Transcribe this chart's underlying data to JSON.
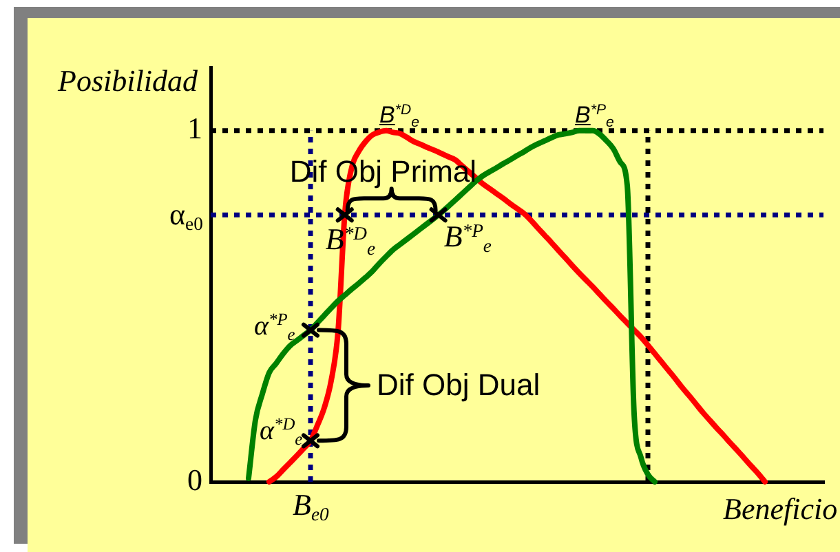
{
  "chart_data": {
    "type": "line",
    "xlabel": "Beneficio",
    "ylabel": "Posibilidad",
    "categories": [
      null,
      null,
      null,
      null,
      null,
      null,
      null,
      null,
      null,
      null,
      null,
      null,
      null,
      null,
      null,
      null,
      null,
      null,
      null,
      null,
      null,
      null,
      null,
      null,
      null,
      null,
      null,
      null,
      null,
      null,
      null,
      null,
      null,
      null,
      null,
      null,
      null,
      null,
      null,
      null,
      null,
      null,
      null,
      null,
      null,
      null,
      null,
      null,
      null,
      null,
      null,
      null,
      null,
      null,
      null,
      null,
      null,
      null,
      null,
      null,
      null,
      null,
      null,
      null,
      null,
      null,
      null,
      null,
      null,
      null,
      null,
      null,
      null,
      null,
      null,
      null,
      null,
      null,
      null,
      null,
      null,
      null,
      null,
      null,
      null,
      null,
      null,
      null,
      null
    ],
    "ylim": [
      0,
      1.18
    ],
    "yticks": [
      0,
      {
        "value": 0.76,
        "label": "α$_{e0}$"
      },
      1
    ],
    "marker": "none",
    "series": [
      {
        "color": "#008000",
        "values": [
          null,
          null,
          null,
          null,
          null,
          0.01,
          0.176,
          0.25,
          0.311,
          0.337,
          0.364,
          0.387,
          0.402,
          0.417,
          0.432,
          0.453,
          0.474,
          0.495,
          0.515,
          0.532,
          0.549,
          0.565,
          0.582,
          0.6,
          0.622,
          0.642,
          0.661,
          0.676,
          0.691,
          0.706,
          0.721,
          0.736,
          0.751,
          0.767,
          0.784,
          0.802,
          0.82,
          0.838,
          0.856,
          0.871,
          0.883,
          0.894,
          0.906,
          0.917,
          0.929,
          0.94,
          0.952,
          0.962,
          0.971,
          0.98,
          0.988,
          0.991,
          0.995,
          1,
          1,
          1,
          0.99,
          0.971,
          0.948,
          0.91,
          0.844,
          0.193,
          0.069,
          0.021,
          0,
          null,
          null,
          null,
          null,
          null,
          null,
          null,
          null,
          null,
          null,
          null,
          null,
          null,
          null,
          null,
          null,
          null,
          null,
          null,
          null,
          null,
          null,
          null,
          null
        ]
      },
      {
        "color": "#ff0000",
        "values": [
          null,
          null,
          null,
          null,
          null,
          null,
          null,
          null,
          0,
          0.014,
          0.034,
          0.054,
          0.074,
          0.095,
          0.117,
          0.161,
          0.211,
          0.288,
          0.429,
          0.769,
          0.896,
          0.941,
          0.969,
          0.988,
          0.996,
          1,
          0.995,
          0.992,
          0.981,
          0.969,
          0.961,
          0.952,
          0.944,
          0.935,
          0.926,
          0.917,
          0.9,
          0.883,
          0.866,
          0.849,
          0.835,
          0.821,
          0.807,
          0.792,
          0.778,
          0.764,
          0.745,
          0.723,
          0.702,
          0.681,
          0.659,
          0.638,
          0.616,
          0.595,
          0.575,
          0.555,
          0.534,
          0.513,
          0.493,
          0.472,
          0.452,
          0.432,
          0.412,
          0.389,
          0.365,
          0.341,
          0.317,
          0.293,
          0.268,
          0.245,
          0.221,
          0.197,
          0.175,
          0.153,
          0.132,
          0.11,
          0.089,
          0.067,
          0.045,
          0.024,
          0,
          null,
          null,
          null,
          null,
          null,
          null,
          null,
          null
        ]
      }
    ],
    "ref_lines": [
      {
        "axis": "y",
        "value": 1,
        "color": "#000000",
        "line_style": "dotted"
      },
      {
        "axis": "y",
        "value": 0.76,
        "color": "#000080",
        "line_style": "dotted"
      }
    ],
    "annotations": [
      {
        "text": "B$^{*D}$$_{e}$",
        "y": 1
      },
      {
        "text": "B$^{*P}$$_{e}$",
        "y": 1
      },
      {
        "text": "B$^{*D}$$_{e}$",
        "y": 0.76
      },
      {
        "text": "B$^{*P}$$_{e}$",
        "y": 0.76
      },
      "α$^{*P}$$_{e}$",
      "α$^{*D}$$_{e}$",
      "Dif Obj Primal",
      "Dif Obj Dual",
      "B$_{e0}$"
    ]
  }
}
